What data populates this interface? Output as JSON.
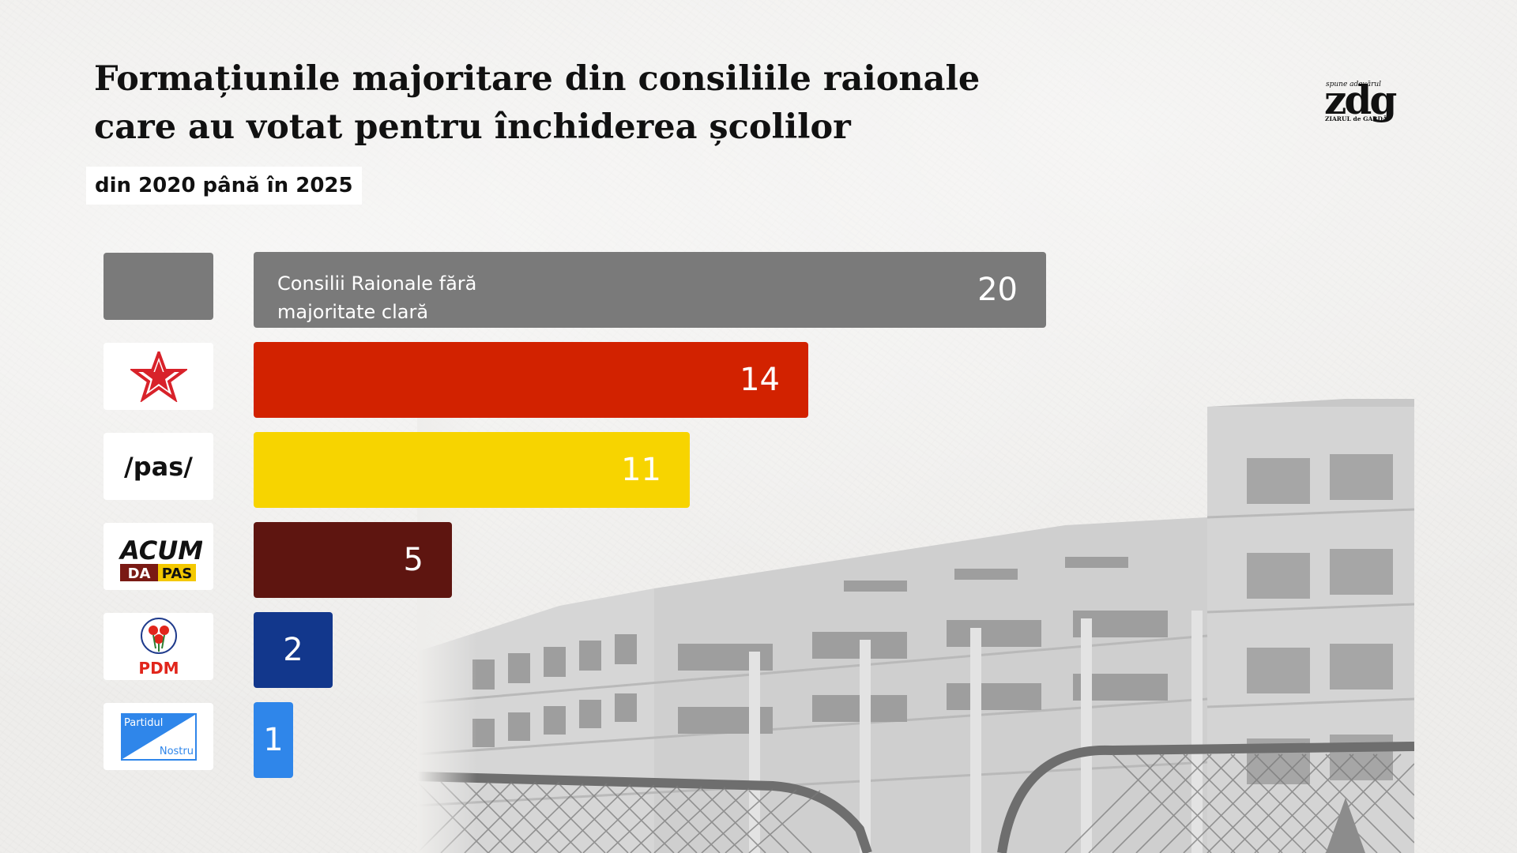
{
  "chart_data": {
    "type": "bar",
    "orientation": "horizontal",
    "title": "Formațiunile majoritare din consiliile raionale care au votat pentru închiderea școlilor",
    "subtitle": "din 2020 până în 2025",
    "categories": [
      "Consilii Raionale fără majoritate clară",
      "PSRM",
      "PAS",
      "ACUM DA PAS",
      "PDM",
      "Partidul Nostru"
    ],
    "values": [
      20,
      14,
      11,
      5,
      2,
      1
    ],
    "colors": [
      "#7a7a7a",
      "#d22200",
      "#f7d400",
      "#5e1510",
      "#12378c",
      "#2f86ea"
    ],
    "value_labels": [
      "20",
      "14",
      "11",
      "5",
      "2",
      "1"
    ],
    "inline_labels": [
      "Consilii Raionale fără majoritate clară",
      "",
      "",
      "",
      "",
      ""
    ],
    "xlim": [
      0,
      20
    ],
    "grid": false,
    "legend": "none"
  },
  "party_logos": {
    "none_color": "#7a7a7a",
    "psrm": {
      "icon": "red-star-icon",
      "color": "#d8222a"
    },
    "pas": {
      "text": "/pas/"
    },
    "acum": {
      "line1": "ACUM",
      "line2a": "DA",
      "line2b": "PAS",
      "colors": [
        "#111111",
        "#7a1a14",
        "#f4c800"
      ]
    },
    "pdm": {
      "text": "PDM",
      "color": "#e1251b",
      "icon": "roses-icon"
    },
    "pn": {
      "line1": "Partidul",
      "line2": "Nostru",
      "color": "#2f86ea"
    }
  },
  "brand": {
    "tagline": "spune adevărul",
    "mark": "zdg",
    "name": "ZIARUL de GARDĂ"
  }
}
